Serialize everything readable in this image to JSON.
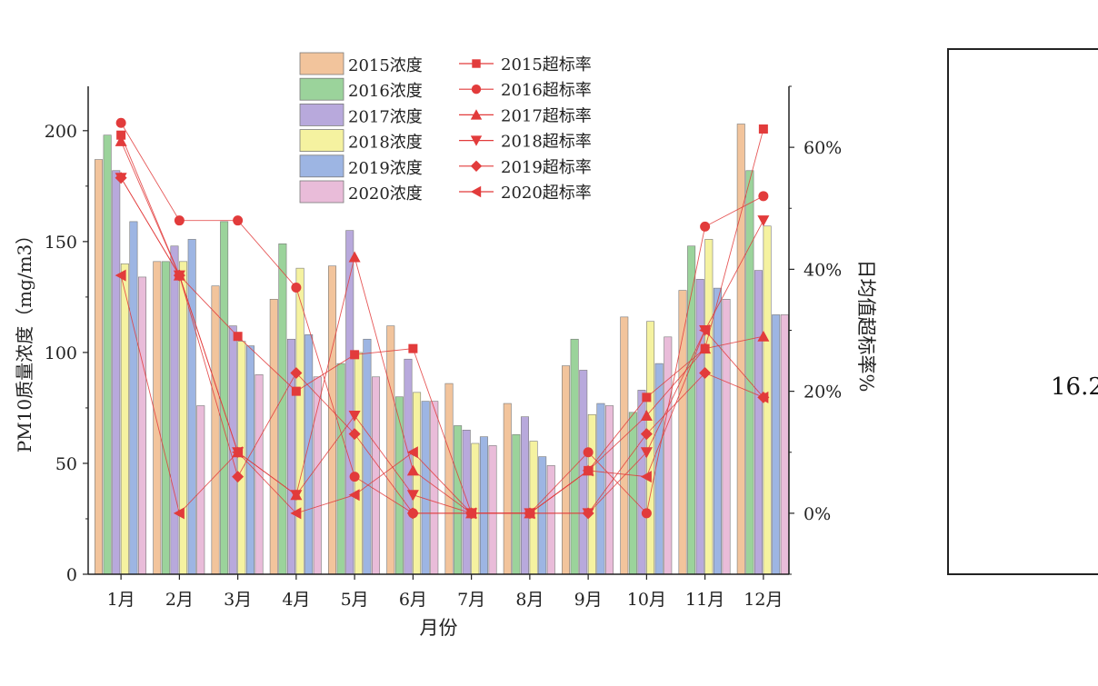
{
  "chart_data": {
    "type": "bar+line",
    "categories": [
      "1月",
      "2月",
      "3月",
      "4月",
      "5月",
      "6月",
      "7月",
      "8月",
      "9月",
      "10月",
      "11月",
      "12月"
    ],
    "xlabel": "月份",
    "ylabel_left": "PM10质量浓度（mg/m3）",
    "ylabel_right": "日均值超标率%",
    "ylim_left": [
      0,
      220
    ],
    "yticks_left": [
      0,
      50,
      100,
      150,
      200
    ],
    "ylim_right": [
      -10,
      70
    ],
    "yticks_right": [
      "0%",
      "20%",
      "40%",
      "60%"
    ],
    "yticks_right_values": [
      0,
      20,
      40,
      60
    ],
    "bar_series": [
      {
        "name": "2015浓度",
        "color": "#f2c49c",
        "values": [
          187,
          141,
          130,
          124,
          139,
          112,
          86,
          77,
          94,
          116,
          128,
          203
        ]
      },
      {
        "name": "2016浓度",
        "color": "#9bd39b",
        "values": [
          198,
          141,
          159,
          149,
          95,
          80,
          67,
          63,
          106,
          73,
          148,
          182
        ]
      },
      {
        "name": "2017浓度",
        "color": "#b8a9dc",
        "values": [
          182,
          148,
          112,
          106,
          155,
          97,
          65,
          71,
          92,
          83,
          133,
          137
        ]
      },
      {
        "name": "2018浓度",
        "color": "#f5f2a0",
        "values": [
          140,
          141,
          105,
          138,
          100,
          82,
          59,
          60,
          72,
          114,
          151,
          157
        ]
      },
      {
        "name": "2019浓度",
        "color": "#9db5e3",
        "values": [
          159,
          151,
          103,
          108,
          106,
          78,
          62,
          53,
          77,
          95,
          129,
          117
        ]
      },
      {
        "name": "2020浓度",
        "color": "#e9bcd9",
        "values": [
          134,
          76,
          90,
          89,
          89,
          78,
          58,
          49,
          76,
          107,
          124,
          117
        ]
      }
    ],
    "line_series": [
      {
        "name": "2015超标率",
        "marker": "square",
        "values": [
          62,
          39,
          29,
          20,
          26,
          27,
          0,
          0,
          7,
          19,
          27,
          63
        ]
      },
      {
        "name": "2016超标率",
        "marker": "circle",
        "values": [
          64,
          48,
          48,
          37,
          6,
          0,
          0,
          0,
          10,
          0,
          47,
          52
        ]
      },
      {
        "name": "2017超标率",
        "marker": "triangle-up",
        "values": [
          61,
          39,
          10,
          3,
          42,
          7,
          0,
          0,
          7,
          16,
          27,
          29
        ]
      },
      {
        "name": "2018超标率",
        "marker": "triangle-down",
        "values": [
          55,
          39,
          10,
          3,
          16,
          3,
          0,
          0,
          0,
          10,
          30,
          48
        ]
      },
      {
        "name": "2019超标率",
        "marker": "diamond",
        "values": [
          55,
          39,
          6,
          23,
          13,
          0,
          0,
          0,
          0,
          13,
          23,
          19
        ]
      },
      {
        "name": "2020超标率",
        "marker": "triangle-left",
        "values": [
          39,
          0,
          10,
          0,
          3,
          10,
          0,
          0,
          7,
          6,
          30,
          19
        ]
      }
    ],
    "line_color": "#e23b3b",
    "legend": "top",
    "grid": false
  },
  "side_panel": {
    "value": "16.2"
  }
}
